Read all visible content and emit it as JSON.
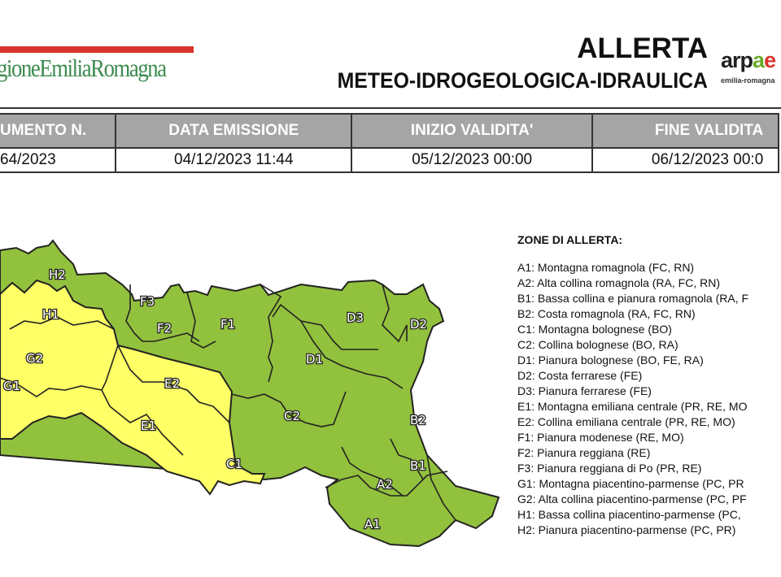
{
  "header": {
    "region_logo_text": "gioneEmiliaRomagna",
    "title": "ALLERTA",
    "subtitle": "METEO-IDROGEOLOGICA-IDRAULICA",
    "arpae_logo_text": "arpae",
    "arpae_logo_sub": "emilia-romagna"
  },
  "info_table": {
    "headers": [
      "UMENTO N.",
      "DATA EMISSIONE",
      "INIZIO VALIDITA'",
      "FINE VALIDITA"
    ],
    "values": [
      "64/2023",
      "04/12/2023 11:44",
      "05/12/2023 00:00",
      "06/12/2023 00:0"
    ]
  },
  "map": {
    "colors": {
      "green": "#92c13d",
      "yellow": "#ffff66"
    },
    "zone_labels": [
      "H2",
      "H1",
      "G2",
      "G1",
      "F3",
      "F2",
      "F1",
      "E2",
      "E1",
      "C1",
      "C2",
      "D1",
      "D3",
      "D2",
      "B2",
      "B1",
      "A2",
      "A1"
    ],
    "yellow_zones": [
      "H1",
      "G1",
      "G2",
      "E1",
      "E2",
      "C1"
    ],
    "green_zones": [
      "H2",
      "F1",
      "F2",
      "F3",
      "C2",
      "D1",
      "D2",
      "D3",
      "B1",
      "B2",
      "A1",
      "A2"
    ]
  },
  "legend": {
    "title": "ZONE DI ALLERTA:",
    "items": [
      "A1: Montagna romagnola (FC, RN)",
      "A2: Alta collina romagnola (RA, FC, RN)",
      "B1: Bassa collina e pianura romagnola (RA, F",
      "B2: Costa romagnola (RA, FC, RN)",
      "C1: Montagna bolognese (BO)",
      "C2: Collina bolognese (BO, RA)",
      "D1: Pianura bolognese (BO, FE, RA)",
      "D2: Costa ferrarese (FE)",
      "D3: Pianura ferrarese (FE)",
      "E1: Montagna emiliana centrale (PR, RE, MO",
      "E2: Collina emiliana centrale (PR, RE, MO)",
      "F1: Pianura modenese (RE, MO)",
      "F2: Pianura reggiana (RE)",
      "F3: Pianura reggiana di Po (PR, RE)",
      "G1: Montagna piacentino-parmense (PC, PR",
      "G2: Alta collina piacentino-parmense (PC, PF",
      "H1: Bassa collina piacentino-parmense (PC,",
      "H2: Pianura piacentino-parmense (PC, PR)"
    ]
  }
}
